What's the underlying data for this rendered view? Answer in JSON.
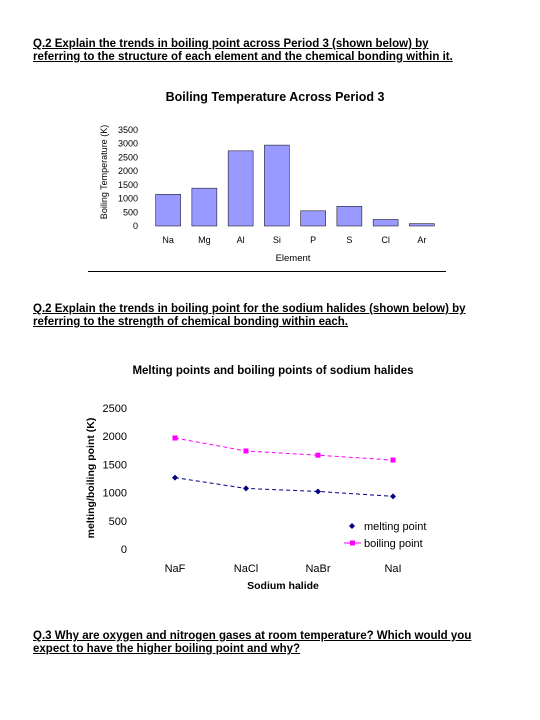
{
  "questions": {
    "q1": {
      "line1": "Q.2 Explain the trends in boiling point across Period 3 (shown below) by",
      "line2": "referring to the structure of each element and the chemical bonding within it."
    },
    "q2": {
      "line1": "Q.2 Explain the trends in boiling point for the sodium halides (shown below) by",
      "line2": "referring to the strength of chemical bonding within each."
    },
    "q3": {
      "line1": "Q.3 Why are oxygen and nitrogen gases at room temperature? Which would you",
      "line2": "expect to have the higher boiling point and why?"
    }
  },
  "chart_data": [
    {
      "type": "bar",
      "title": "Boiling Temperature Across Period 3",
      "xlabel": "Element",
      "ylabel": "Boiling Temperature (K)",
      "categories": [
        "Na",
        "Mg",
        "Al",
        "Si",
        "P",
        "S",
        "Cl",
        "Ar"
      ],
      "values": [
        1156,
        1380,
        2740,
        2950,
        553,
        718,
        239,
        87
      ],
      "yticks": [
        0,
        500,
        1000,
        1500,
        2000,
        2500,
        3000,
        3500
      ],
      "ylim": [
        0,
        3500
      ],
      "bar_color": "#9999ff",
      "grid": false
    },
    {
      "type": "line",
      "title": "Melting points and boiling points of sodium halides",
      "xlabel": "Sodium halide",
      "ylabel": "melting/boiling point (K)",
      "categories": [
        "NaF",
        "NaCl",
        "NaBr",
        "NaI"
      ],
      "series": [
        {
          "name": "melting point",
          "values": [
            1266,
            1074,
            1020,
            934
          ],
          "color": "#000080"
        },
        {
          "name": "boiling point",
          "values": [
            1968,
            1738,
            1663,
            1577
          ],
          "color": "#ff00ff"
        }
      ],
      "yticks": [
        0,
        500,
        1000,
        1500,
        2000,
        2500
      ],
      "ylim": [
        0,
        2500
      ],
      "legend": "bottom-right",
      "grid": false
    }
  ]
}
